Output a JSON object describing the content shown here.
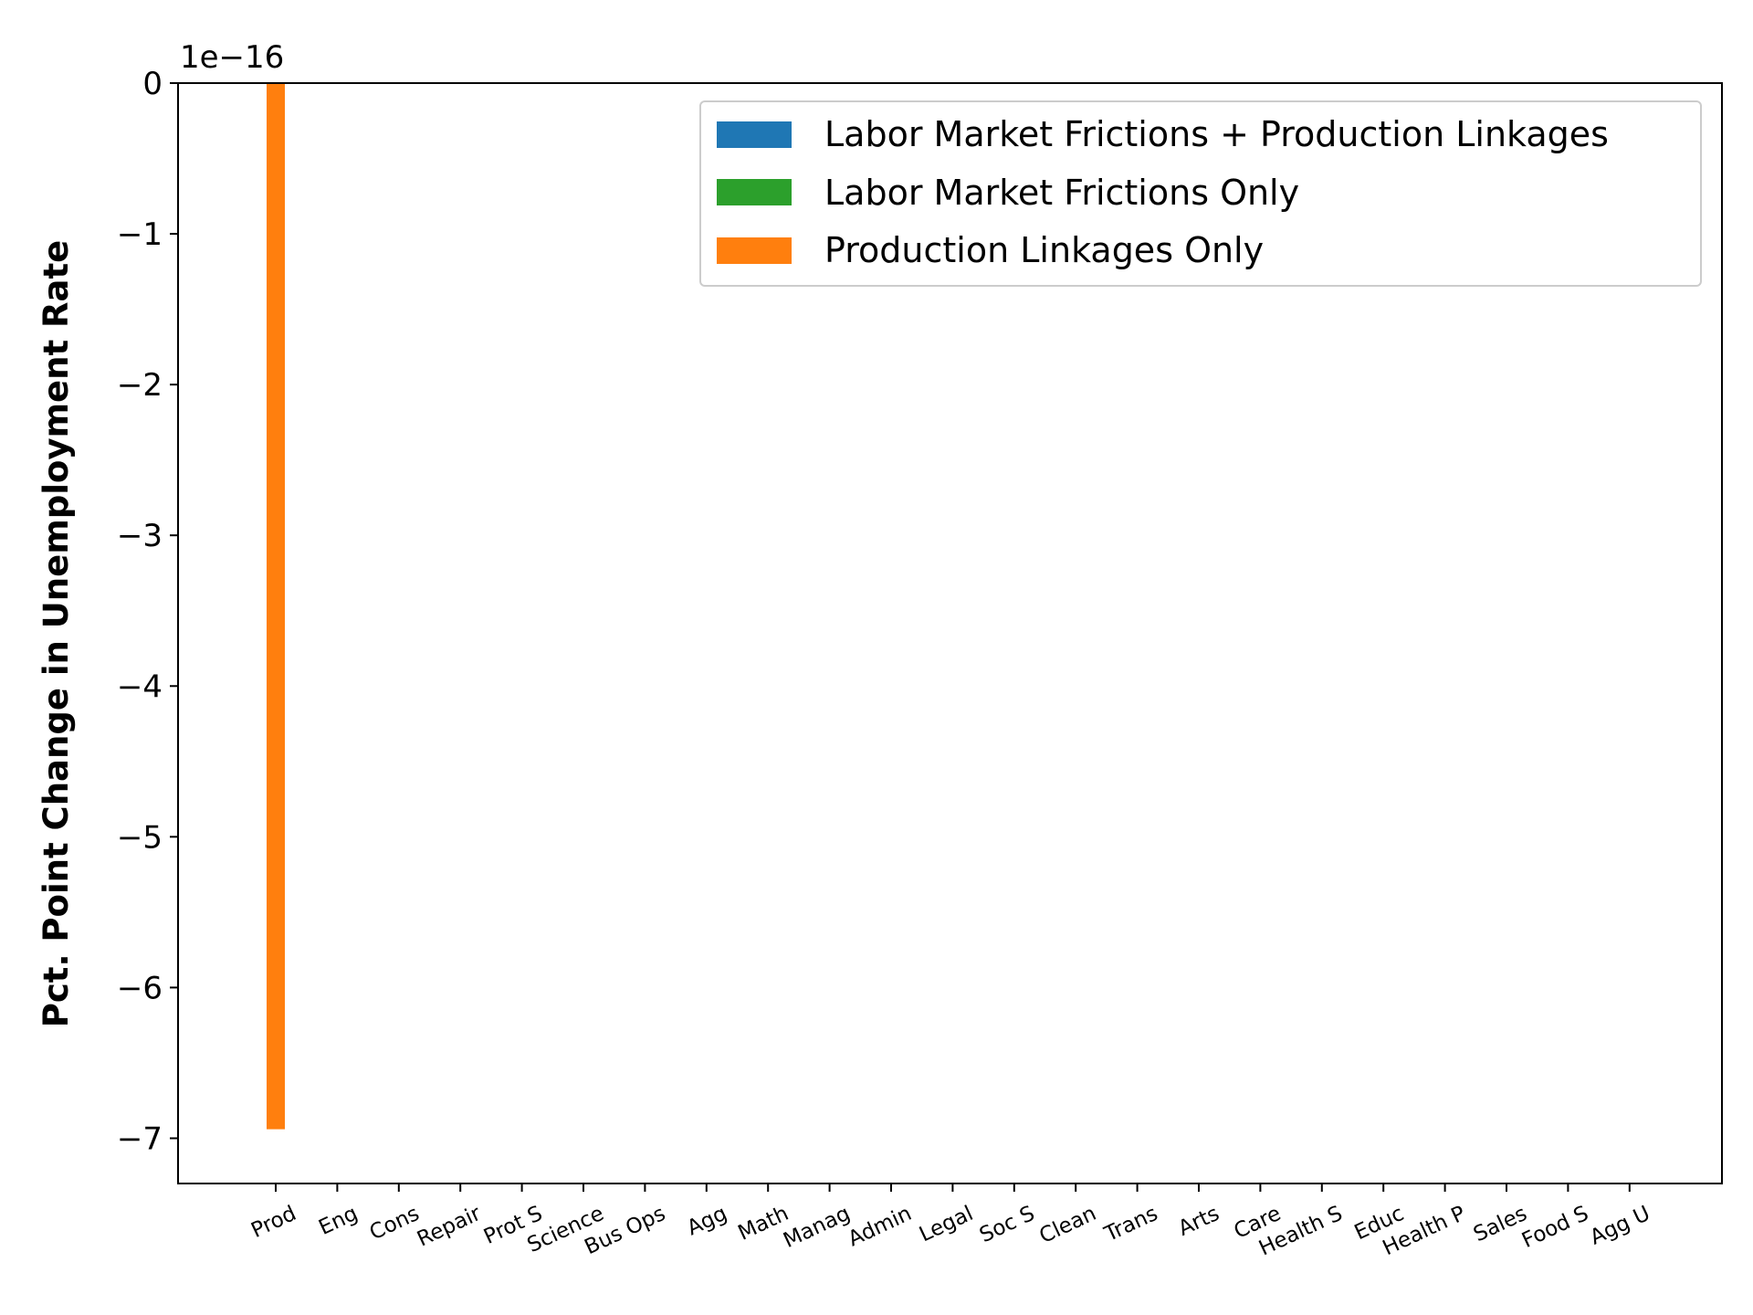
{
  "chart_data": {
    "type": "bar",
    "title": "",
    "xlabel": "",
    "ylabel": "Pct. Point Change in Unemployment Rate",
    "offset_text": "1e−16",
    "scale_factor": 1e-16,
    "ylim": [
      -7.3,
      0
    ],
    "yticks": [
      0,
      -1,
      -2,
      -3,
      -4,
      -5,
      -6,
      -7
    ],
    "ytick_labels": [
      "0",
      "−1",
      "−2",
      "−3",
      "−4",
      "−5",
      "−6",
      "−7"
    ],
    "grid": false,
    "legend_position": "top-right",
    "categories": [
      "Prod",
      "Eng",
      "Cons",
      "Repair",
      "Prot S",
      "Science",
      "Bus Ops",
      "Agg",
      "Math",
      "Manag",
      "Admin",
      "Legal",
      "Soc S",
      "Clean",
      "Trans",
      "Arts",
      "Care",
      "Health S",
      "Educ",
      "Health P",
      "Sales",
      "Food S",
      "Agg U"
    ],
    "series": [
      {
        "name": "Labor Market Frictions + Production Linkages",
        "color": "#1f77b4",
        "values": [
          0,
          0,
          0,
          0,
          0,
          0,
          0,
          0,
          0,
          0,
          0,
          0,
          0,
          0,
          0,
          0,
          0,
          0,
          0,
          0,
          0,
          0,
          0
        ]
      },
      {
        "name": "Labor Market Frictions Only",
        "color": "#2ca02c",
        "values": [
          0,
          0,
          0,
          0,
          0,
          0,
          0,
          0,
          0,
          0,
          0,
          0,
          0,
          0,
          0,
          0,
          0,
          0,
          0,
          0,
          0,
          0,
          0
        ]
      },
      {
        "name": "Production Linkages Only",
        "color": "#ff7f0e",
        "values": [
          -6.94,
          0,
          0,
          0,
          0,
          0,
          0,
          0,
          0,
          0,
          0,
          0,
          0,
          0,
          0,
          0,
          0,
          0,
          0,
          0,
          0,
          0,
          0
        ]
      }
    ]
  }
}
